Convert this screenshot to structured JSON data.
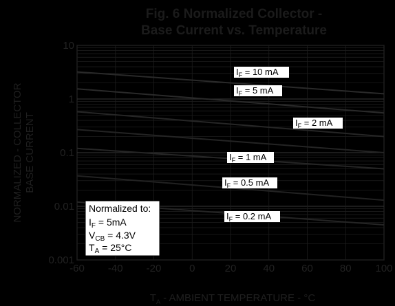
{
  "chart_data": {
    "type": "line",
    "title_line1": "Fig. 6  Normalized Collector -",
    "title_line2": "Base Current vs. Temperature",
    "xlabel": {
      "main": "T",
      "sub": "A",
      "rest": " - AMBIENT TEMPERATURE - °C"
    },
    "ylabel_line1": "NORMALIZED - COLLECTOR",
    "ylabel_line2": "BASE CURRENT",
    "xlim": [
      -60,
      100
    ],
    "ylim": [
      0.001,
      10
    ],
    "yscale": "log",
    "x_ticks": [
      "-60",
      "-40",
      "-20",
      "0",
      "20",
      "40",
      "60",
      "80",
      "100"
    ],
    "y_ticks": [
      "0.001",
      "0.01",
      "0.1",
      "1",
      "10"
    ],
    "grid": true,
    "series": [
      {
        "name": "I_F = 10 mA",
        "label_main": "I",
        "label_sub": "F",
        "label_rest": " = 10 mA",
        "x": [
          -60,
          100
        ],
        "y": [
          3.2,
          1.25
        ]
      },
      {
        "name": "I_F = 5 mA",
        "label_main": "I",
        "label_sub": "F",
        "label_rest": " = 5 mA",
        "x": [
          -60,
          100
        ],
        "y": [
          1.55,
          0.55
        ]
      },
      {
        "name": "I_F = 2 mA",
        "label_main": "I",
        "label_sub": "F",
        "label_rest": " = 2 mA",
        "x": [
          -60,
          100
        ],
        "y": [
          0.58,
          0.2
        ]
      },
      {
        "name": "I_F = 2 mA (b)",
        "label_main": "",
        "label_sub": "",
        "label_rest": "",
        "x": [
          -60,
          100
        ],
        "y": [
          0.27,
          0.1
        ]
      },
      {
        "name": "I_F = 1 mA",
        "label_main": "I",
        "label_sub": "F",
        "label_rest": " = 1 mA",
        "x": [
          -60,
          100
        ],
        "y": [
          0.12,
          0.05
        ]
      },
      {
        "name": "I_F = 0.5 mA",
        "label_main": "I",
        "label_sub": "F",
        "label_rest": " = 0.5 mA",
        "x": [
          -60,
          100
        ],
        "y": [
          0.037,
          0.013
        ]
      },
      {
        "name": "I_F = 0.2 mA",
        "label_main": "I",
        "label_sub": "F",
        "label_rest": " = 0.2 mA",
        "x": [
          -60,
          100
        ],
        "y": [
          0.012,
          0.0045
        ]
      }
    ],
    "note": {
      "line1": "Normalized to:",
      "line2": {
        "main": "I",
        "sub": "F",
        "rest": " = 5mA"
      },
      "line3": {
        "main": "V",
        "sub": "CB",
        "rest": " = 4.3V"
      },
      "line4": {
        "main": "T",
        "sub": "A",
        "rest": " = 25°C"
      }
    }
  }
}
